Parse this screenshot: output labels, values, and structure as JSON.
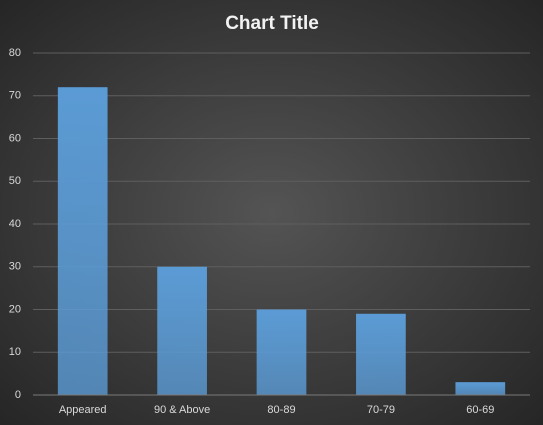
{
  "chart_data": {
    "type": "bar",
    "title": "Chart Title",
    "categories": [
      "Appeared",
      "90 & Above",
      "80-89",
      "70-79",
      "60-69"
    ],
    "values": [
      72,
      30,
      20,
      19,
      3
    ],
    "color": "#5b9bd5",
    "ylim": [
      0,
      80
    ],
    "yticks": [
      0,
      10,
      20,
      30,
      40,
      50,
      60,
      70,
      80
    ],
    "grid": true
  }
}
